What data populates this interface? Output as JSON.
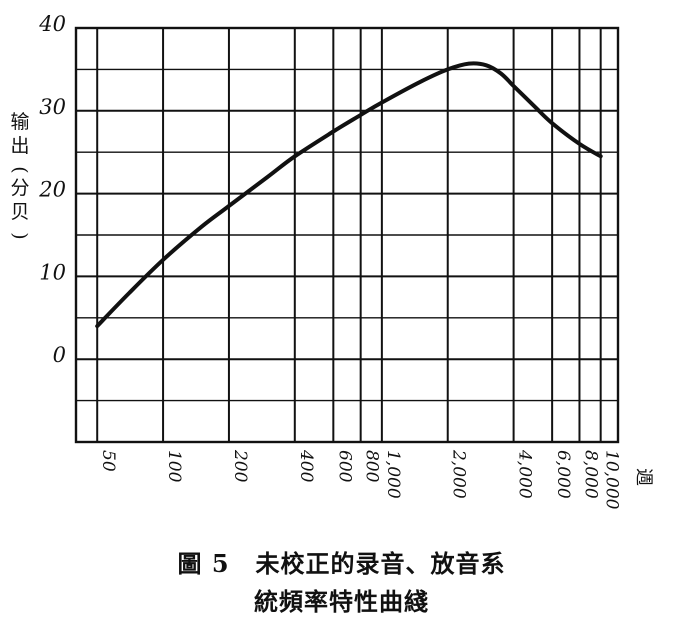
{
  "chart_data": {
    "type": "line",
    "ylabel": "输出(分贝)",
    "x_unit": "週",
    "x_scale": "log",
    "xlim": [
      40,
      12000
    ],
    "ylim": [
      -10,
      40
    ],
    "grid": true,
    "y_ticks": [
      0,
      10,
      20,
      30,
      40
    ],
    "y_tick_labels": [
      "0",
      "10",
      "20",
      "30",
      "40"
    ],
    "x_ticks": [
      50,
      100,
      200,
      400,
      600,
      800,
      1000,
      2000,
      4000,
      6000,
      8000,
      10000
    ],
    "x_tick_labels": [
      "50",
      "100",
      "200",
      "400",
      "600",
      "800",
      "1,000",
      "2,000",
      "4,000",
      "6,000",
      "8,000",
      "10,000"
    ],
    "series": [
      {
        "x": [
          50,
          70,
          100,
          150,
          200,
          300,
          400,
          600,
          800,
          1000,
          1500,
          2000,
          2500,
          3000,
          3500,
          4000,
          5000,
          6000,
          8000,
          10000
        ],
        "values": [
          4,
          8,
          12,
          16,
          18.5,
          22,
          24.5,
          27.5,
          29.5,
          31,
          33.5,
          35,
          35.7,
          35.5,
          34.5,
          33,
          30.5,
          28.5,
          26,
          24.5
        ]
      }
    ]
  },
  "caption": {
    "figure_label": "圖 5",
    "line1": "未校正的录音、放音系",
    "line2": "統頻率特性曲綫"
  },
  "colors": {
    "ink": "#111111",
    "background": "#ffffff"
  }
}
